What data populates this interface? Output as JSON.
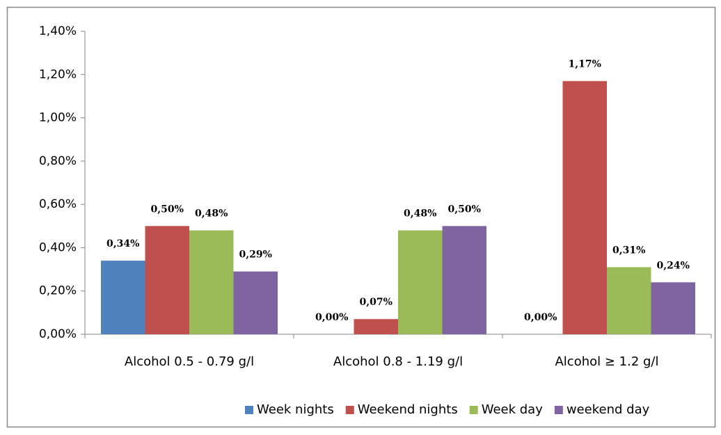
{
  "chart_data": {
    "type": "bar",
    "categories": [
      "Alcohol 0.5 - 0.79 g/l",
      "Alcohol 0.8 - 1.19 g/l",
      "Alcohol  ≥ 1.2 g/l"
    ],
    "series": [
      {
        "name": "Week nights",
        "color": "#4f81bd",
        "values": [
          0.34,
          0,
          0
        ],
        "value_labels": [
          "0,34%",
          "0,00%",
          "0,00%"
        ]
      },
      {
        "name": "Weekend nights",
        "color": "#c0504d",
        "values": [
          0.5,
          0.07,
          1.17
        ],
        "value_labels": [
          "0,50%",
          "0,07%",
          "1,17%"
        ]
      },
      {
        "name": "Week day",
        "color": "#9bbb59",
        "values": [
          0.48,
          0.48,
          0.31
        ],
        "value_labels": [
          "0,48%",
          "0,48%",
          "0,31%"
        ]
      },
      {
        "name": "weekend day",
        "color": "#8064a2",
        "values": [
          0.29,
          0.5,
          0.24
        ],
        "value_labels": [
          "0,29%",
          "0,50%",
          "0,24%"
        ]
      }
    ],
    "ylim": [
      0,
      1.4
    ],
    "yticks": [
      {
        "value": 0,
        "label": "0,00%"
      },
      {
        "value": 0.2,
        "label": "0,20%"
      },
      {
        "value": 0.4,
        "label": "0,40%"
      },
      {
        "value": 0.6,
        "label": "0,60%"
      },
      {
        "value": 0.8,
        "label": "0,80%"
      },
      {
        "value": 1.0,
        "label": "1,00%"
      },
      {
        "value": 1.2,
        "label": "1,20%"
      },
      {
        "value": 1.4,
        "label": "1,40%"
      }
    ],
    "grid": false,
    "legend": "bottom"
  }
}
